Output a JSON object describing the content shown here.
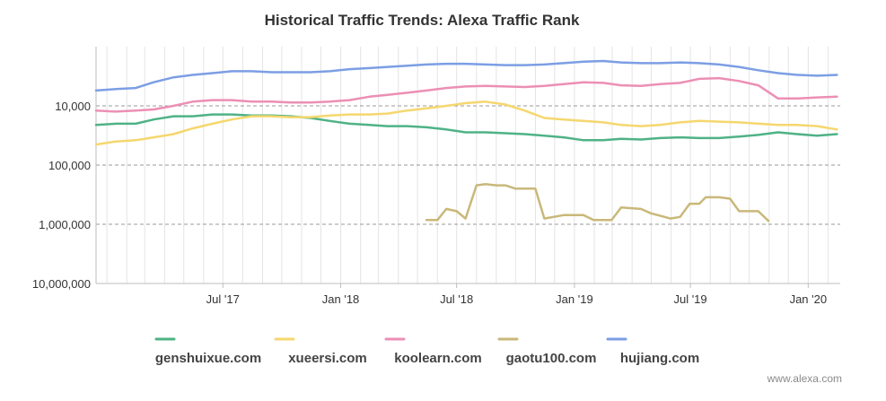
{
  "chart_data": {
    "type": "line",
    "title": "Historical Traffic Trends: Alexa Traffic Rank",
    "xlabel": "",
    "ylabel": "",
    "y_scale": "log",
    "y_reversed": true,
    "ylim": [
      1000,
      10000000
    ],
    "y_ticks": [
      {
        "value": 10000,
        "label": "10,000"
      },
      {
        "value": 100000,
        "label": "100,000"
      },
      {
        "value": 1000000,
        "label": "1,000,000"
      },
      {
        "value": 10000000,
        "label": "10,000,000"
      }
    ],
    "xlim": [
      "2016-12-15",
      "2020-02-20"
    ],
    "x_ticks": [
      {
        "date": "2017-07-01",
        "label": "Jul '17"
      },
      {
        "date": "2018-01-01",
        "label": "Jan '18"
      },
      {
        "date": "2018-07-01",
        "label": "Jul '18"
      },
      {
        "date": "2019-01-01",
        "label": "Jan '19"
      },
      {
        "date": "2019-07-01",
        "label": "Jul '19"
      },
      {
        "date": "2020-01-01",
        "label": "Jan '20"
      }
    ],
    "grid": true,
    "legend_position": "bottom",
    "series": [
      {
        "name": "genshuixue.com",
        "color": "#4fb286",
        "points": [
          [
            "2016-12-15",
            21000
          ],
          [
            "2017-01-15",
            20000
          ],
          [
            "2017-02-15",
            20000
          ],
          [
            "2017-03-15",
            17000
          ],
          [
            "2017-04-15",
            15000
          ],
          [
            "2017-05-15",
            15000
          ],
          [
            "2017-06-15",
            14000
          ],
          [
            "2017-07-15",
            14000
          ],
          [
            "2017-08-15",
            14500
          ],
          [
            "2017-09-15",
            14500
          ],
          [
            "2017-10-15",
            15000
          ],
          [
            "2017-11-15",
            16000
          ],
          [
            "2017-12-15",
            18000
          ],
          [
            "2018-01-15",
            20000
          ],
          [
            "2018-02-15",
            21000
          ],
          [
            "2018-03-15",
            22000
          ],
          [
            "2018-04-15",
            22000
          ],
          [
            "2018-05-15",
            23000
          ],
          [
            "2018-06-15",
            25000
          ],
          [
            "2018-07-15",
            28000
          ],
          [
            "2018-08-15",
            28000
          ],
          [
            "2018-09-15",
            29000
          ],
          [
            "2018-10-15",
            30000
          ],
          [
            "2018-11-15",
            32000
          ],
          [
            "2018-12-15",
            34000
          ],
          [
            "2019-01-15",
            38000
          ],
          [
            "2019-02-15",
            38000
          ],
          [
            "2019-03-15",
            36000
          ],
          [
            "2019-04-15",
            37000
          ],
          [
            "2019-05-15",
            35000
          ],
          [
            "2019-06-15",
            34000
          ],
          [
            "2019-07-15",
            35000
          ],
          [
            "2019-08-15",
            35000
          ],
          [
            "2019-09-15",
            33000
          ],
          [
            "2019-10-15",
            31000
          ],
          [
            "2019-11-15",
            28000
          ],
          [
            "2019-12-15",
            30000
          ],
          [
            "2020-01-15",
            32000
          ],
          [
            "2020-02-15",
            30000
          ]
        ]
      },
      {
        "name": "xueersi.com",
        "color": "#f5d76e",
        "points": [
          [
            "2016-12-15",
            45000
          ],
          [
            "2017-01-15",
            40000
          ],
          [
            "2017-02-15",
            38000
          ],
          [
            "2017-03-15",
            34000
          ],
          [
            "2017-04-15",
            30000
          ],
          [
            "2017-05-15",
            24000
          ],
          [
            "2017-06-15",
            20000
          ],
          [
            "2017-07-15",
            17000
          ],
          [
            "2017-08-15",
            15000
          ],
          [
            "2017-09-15",
            15000
          ],
          [
            "2017-10-15",
            15500
          ],
          [
            "2017-11-15",
            15500
          ],
          [
            "2017-12-15",
            14500
          ],
          [
            "2018-01-15",
            14000
          ],
          [
            "2018-02-15",
            14000
          ],
          [
            "2018-03-15",
            13500
          ],
          [
            "2018-04-15",
            12000
          ],
          [
            "2018-05-15",
            11000
          ],
          [
            "2018-06-15",
            10000
          ],
          [
            "2018-07-15",
            9000
          ],
          [
            "2018-08-15",
            8500
          ],
          [
            "2018-09-15",
            9500
          ],
          [
            "2018-10-15",
            12000
          ],
          [
            "2018-11-15",
            16000
          ],
          [
            "2018-12-15",
            17000
          ],
          [
            "2019-01-15",
            18000
          ],
          [
            "2019-02-15",
            19000
          ],
          [
            "2019-03-15",
            21000
          ],
          [
            "2019-04-15",
            22000
          ],
          [
            "2019-05-15",
            21000
          ],
          [
            "2019-06-15",
            19000
          ],
          [
            "2019-07-15",
            18000
          ],
          [
            "2019-08-15",
            18500
          ],
          [
            "2019-09-15",
            19000
          ],
          [
            "2019-10-15",
            20000
          ],
          [
            "2019-11-15",
            21000
          ],
          [
            "2019-12-15",
            21000
          ],
          [
            "2020-01-15",
            22000
          ],
          [
            "2020-02-15",
            25000
          ]
        ]
      },
      {
        "name": "koolearn.com",
        "color": "#ec8fb5",
        "points": [
          [
            "2016-12-15",
            12000
          ],
          [
            "2017-01-15",
            12500
          ],
          [
            "2017-02-15",
            12000
          ],
          [
            "2017-03-15",
            11500
          ],
          [
            "2017-04-15",
            10000
          ],
          [
            "2017-05-15",
            8500
          ],
          [
            "2017-06-15",
            8000
          ],
          [
            "2017-07-15",
            8000
          ],
          [
            "2017-08-15",
            8500
          ],
          [
            "2017-09-15",
            8500
          ],
          [
            "2017-10-15",
            8800
          ],
          [
            "2017-11-15",
            8800
          ],
          [
            "2017-12-15",
            8500
          ],
          [
            "2018-01-15",
            8000
          ],
          [
            "2018-02-15",
            7000
          ],
          [
            "2018-03-15",
            6500
          ],
          [
            "2018-04-15",
            6000
          ],
          [
            "2018-05-15",
            5500
          ],
          [
            "2018-06-15",
            5000
          ],
          [
            "2018-07-15",
            4700
          ],
          [
            "2018-08-15",
            4600
          ],
          [
            "2018-09-15",
            4700
          ],
          [
            "2018-10-15",
            4800
          ],
          [
            "2018-11-15",
            4600
          ],
          [
            "2018-12-15",
            4300
          ],
          [
            "2019-01-15",
            4000
          ],
          [
            "2019-02-15",
            4100
          ],
          [
            "2019-03-15",
            4500
          ],
          [
            "2019-04-15",
            4600
          ],
          [
            "2019-05-15",
            4300
          ],
          [
            "2019-06-15",
            4100
          ],
          [
            "2019-07-15",
            3500
          ],
          [
            "2019-08-15",
            3400
          ],
          [
            "2019-09-15",
            3800
          ],
          [
            "2019-10-15",
            4500
          ],
          [
            "2019-11-15",
            7500
          ],
          [
            "2019-12-15",
            7500
          ],
          [
            "2020-01-15",
            7200
          ],
          [
            "2020-02-15",
            7000
          ]
        ]
      },
      {
        "name": "gaotu100.com",
        "color": "#c9b87a",
        "points": [
          [
            "2018-05-15",
            850000
          ],
          [
            "2018-06-01",
            850000
          ],
          [
            "2018-06-15",
            550000
          ],
          [
            "2018-07-01",
            600000
          ],
          [
            "2018-07-15",
            800000
          ],
          [
            "2018-08-01",
            220000
          ],
          [
            "2018-08-15",
            210000
          ],
          [
            "2018-09-01",
            220000
          ],
          [
            "2018-09-15",
            220000
          ],
          [
            "2018-10-01",
            250000
          ],
          [
            "2018-10-15",
            250000
          ],
          [
            "2018-11-01",
            250000
          ],
          [
            "2018-11-15",
            800000
          ],
          [
            "2018-12-15",
            700000
          ],
          [
            "2019-01-15",
            700000
          ],
          [
            "2019-01-31",
            850000
          ],
          [
            "2019-02-28",
            850000
          ],
          [
            "2019-03-15",
            520000
          ],
          [
            "2019-04-15",
            550000
          ],
          [
            "2019-04-30",
            650000
          ],
          [
            "2019-05-31",
            800000
          ],
          [
            "2019-06-15",
            750000
          ],
          [
            "2019-06-30",
            450000
          ],
          [
            "2019-07-15",
            450000
          ],
          [
            "2019-07-25",
            350000
          ],
          [
            "2019-08-15",
            350000
          ],
          [
            "2019-09-01",
            370000
          ],
          [
            "2019-09-15",
            600000
          ],
          [
            "2019-10-15",
            600000
          ],
          [
            "2019-10-31",
            880000
          ]
        ]
      },
      {
        "name": "hujiang.com",
        "color": "#7c9ee4",
        "points": [
          [
            "2016-12-15",
            5500
          ],
          [
            "2017-01-15",
            5200
          ],
          [
            "2017-02-15",
            5000
          ],
          [
            "2017-03-15",
            4000
          ],
          [
            "2017-04-15",
            3300
          ],
          [
            "2017-05-15",
            3000
          ],
          [
            "2017-06-15",
            2800
          ],
          [
            "2017-07-15",
            2600
          ],
          [
            "2017-08-15",
            2600
          ],
          [
            "2017-09-15",
            2700
          ],
          [
            "2017-10-15",
            2700
          ],
          [
            "2017-11-15",
            2700
          ],
          [
            "2017-12-15",
            2600
          ],
          [
            "2018-01-15",
            2400
          ],
          [
            "2018-02-15",
            2300
          ],
          [
            "2018-03-15",
            2200
          ],
          [
            "2018-04-15",
            2100
          ],
          [
            "2018-05-15",
            2000
          ],
          [
            "2018-06-15",
            1950
          ],
          [
            "2018-07-15",
            1950
          ],
          [
            "2018-08-15",
            2000
          ],
          [
            "2018-09-15",
            2050
          ],
          [
            "2018-10-15",
            2050
          ],
          [
            "2018-11-15",
            2000
          ],
          [
            "2018-12-15",
            1900
          ],
          [
            "2019-01-15",
            1800
          ],
          [
            "2019-02-15",
            1750
          ],
          [
            "2019-03-15",
            1850
          ],
          [
            "2019-04-15",
            1900
          ],
          [
            "2019-05-15",
            1900
          ],
          [
            "2019-06-15",
            1850
          ],
          [
            "2019-07-15",
            1900
          ],
          [
            "2019-08-15",
            2000
          ],
          [
            "2019-09-15",
            2200
          ],
          [
            "2019-10-15",
            2500
          ],
          [
            "2019-11-15",
            2800
          ],
          [
            "2019-12-15",
            3000
          ],
          [
            "2020-01-15",
            3100
          ],
          [
            "2020-02-15",
            3000
          ]
        ]
      }
    ]
  },
  "footer": {
    "source": "www.alexa.com"
  }
}
